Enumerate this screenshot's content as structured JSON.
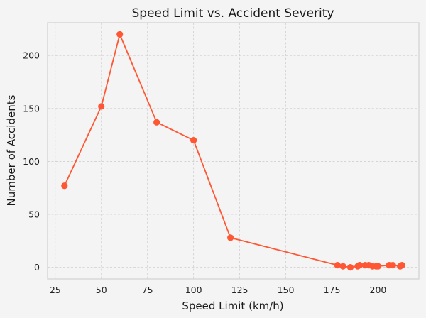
{
  "chart_data": {
    "type": "line",
    "title": "Speed Limit vs. Accident Severity",
    "xlabel": "Speed Limit (km/h)",
    "ylabel": "Number of Accidents",
    "xlim": [
      20.85,
      222.15
    ],
    "ylim": [
      -11,
      231
    ],
    "xticks": [
      25,
      50,
      75,
      100,
      125,
      150,
      175,
      200
    ],
    "yticks": [
      0,
      50,
      100,
      150,
      200
    ],
    "grid": true,
    "legend": null,
    "series": [
      {
        "name": "Accidents",
        "color": "#FF5733",
        "marker": "circle",
        "x": [
          30,
          50,
          60,
          80,
          100,
          120,
          178,
          181,
          185,
          189,
          190,
          193,
          195,
          197,
          199,
          200,
          206,
          208,
          212,
          213
        ],
        "y": [
          77,
          152,
          220,
          137,
          120,
          28,
          2,
          1,
          0,
          1,
          2,
          2,
          2,
          1,
          1,
          1,
          2,
          2,
          1,
          2
        ]
      }
    ]
  },
  "colors": {
    "background": "#f4f4f4",
    "axes_background": "#f4f4f4",
    "grid": "#cfcfcf",
    "spine": "#d6d6d6"
  }
}
